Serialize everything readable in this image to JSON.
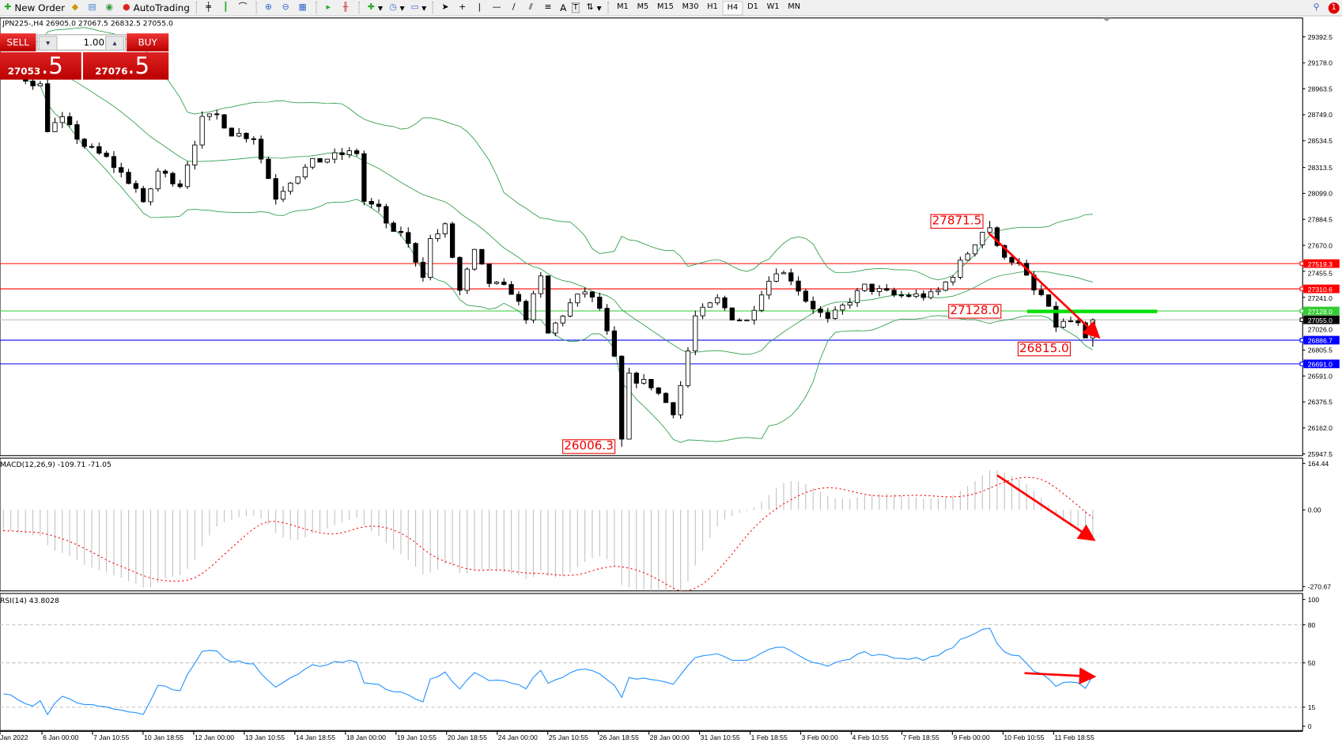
{
  "toolbar": {
    "new_order": "New Order",
    "auto_trading": "AutoTrading",
    "timeframes": [
      "M1",
      "M5",
      "M15",
      "M30",
      "H1",
      "H4",
      "D1",
      "W1",
      "MN"
    ],
    "active_timeframe": "H4",
    "notification_count": "1",
    "draw_tools": {
      "text": "A",
      "text_label": "T"
    }
  },
  "chart": {
    "title": "JPN225-,H4  26905.0 27067.5 26832.5 27055.0",
    "symbol": "JPN225-",
    "timeframe": "H4",
    "last_bar": {
      "open": 26905.0,
      "high": 27067.5,
      "low": 26832.5,
      "close": 27055.0
    },
    "price_ticks": [
      "29392.5",
      "29178.0",
      "28963.5",
      "28749.0",
      "28534.5",
      "28313.5",
      "28099.0",
      "27884.5",
      "27670.0",
      "27455.5",
      "27241.0",
      "27026.0",
      "26805.5",
      "26591.0",
      "26376.5",
      "26162.0",
      "25947.5"
    ],
    "price_range": [
      25947.5,
      29392.5
    ],
    "hlines": [
      {
        "price": 27519.3,
        "label": "27519.3",
        "color": "#ff0000"
      },
      {
        "price": 27310.6,
        "label": "27310.6",
        "color": "#ff0000"
      },
      {
        "price": 27128.0,
        "label": "27128.0",
        "color": "#32cd32"
      },
      {
        "price": 26886.7,
        "label": "26886.7",
        "color": "#0000ff"
      },
      {
        "price": 26691.0,
        "label": "26691.0",
        "color": "#0000ff"
      }
    ],
    "bid": {
      "price": 27055.0,
      "label": "27055.0",
      "color": "#000000"
    },
    "annotations": [
      "27871.5",
      "27128.0",
      "26815.0",
      "26006.3"
    ],
    "close_path_keypoints": [
      [
        0,
        29130
      ],
      [
        5,
        28990
      ],
      [
        6,
        28636
      ],
      [
        8,
        28706
      ],
      [
        11,
        28494
      ],
      [
        14,
        28388
      ],
      [
        18,
        28140
      ],
      [
        19,
        27999
      ],
      [
        21,
        28282
      ],
      [
        24,
        28176
      ],
      [
        27,
        28706
      ],
      [
        29,
        28742
      ],
      [
        31,
        28600
      ],
      [
        34,
        28565
      ],
      [
        35,
        28388
      ],
      [
        37,
        28070
      ],
      [
        39,
        28211
      ],
      [
        42,
        28353
      ],
      [
        46,
        28423
      ],
      [
        48,
        28438
      ],
      [
        49,
        28034
      ],
      [
        51,
        27964
      ],
      [
        53,
        27752
      ],
      [
        54,
        27787
      ],
      [
        57,
        27433
      ],
      [
        58,
        27716
      ],
      [
        60,
        27822
      ],
      [
        61,
        27575
      ],
      [
        62,
        27292
      ],
      [
        64,
        27610
      ],
      [
        66,
        27362
      ],
      [
        69,
        27292
      ],
      [
        71,
        27080
      ],
      [
        73,
        27398
      ],
      [
        74,
        26938
      ],
      [
        77,
        27186
      ],
      [
        79,
        27292
      ],
      [
        81,
        27150
      ],
      [
        83,
        26726
      ],
      [
        84,
        26054
      ],
      [
        85,
        26584
      ],
      [
        88,
        26514
      ],
      [
        91,
        26302
      ],
      [
        92,
        26514
      ],
      [
        94,
        27080
      ],
      [
        97,
        27221
      ],
      [
        99,
        27080
      ],
      [
        101,
        27044
      ],
      [
        103,
        27292
      ],
      [
        105,
        27469
      ],
      [
        107,
        27398
      ],
      [
        109,
        27221
      ],
      [
        112,
        27044
      ],
      [
        115,
        27221
      ],
      [
        117,
        27327
      ],
      [
        121,
        27256
      ],
      [
        126,
        27256
      ],
      [
        127,
        27292
      ],
      [
        129,
        27433
      ],
      [
        131,
        27610
      ],
      [
        133,
        27787
      ],
      [
        134,
        27822
      ],
      [
        135,
        27645
      ],
      [
        138,
        27504
      ],
      [
        140,
        27292
      ],
      [
        141,
        27256
      ],
      [
        143,
        27008
      ],
      [
        145,
        27044
      ],
      [
        147,
        26973
      ],
      [
        148,
        27055
      ]
    ],
    "swing_high": 27871.5,
    "swing_low": 26006.3,
    "colors": {
      "bull_body": "#ffffff",
      "bear_body": "#000000",
      "bands": "#2e9e4a",
      "trend_arrow": "#ff0000",
      "support_line": "#00e000"
    }
  },
  "one_click": {
    "sell_label": "SELL",
    "buy_label": "BUY",
    "lot": "1.00",
    "sell_price_main": "27053",
    "sell_price_frac": ".5",
    "buy_price_main": "27076",
    "buy_price_frac": ".5"
  },
  "macd": {
    "label": "MACD(12,26,9) -109.71 -71.05",
    "ticks": [
      "164.44",
      "0.00",
      "-270.67"
    ],
    "range": [
      -270.67,
      164.44
    ],
    "signal_color": "#ff0000",
    "hist_color": "#c0c0c0"
  },
  "rsi": {
    "label": "RSI(14) 43.8028",
    "ticks": [
      "100",
      "80",
      "50",
      "15",
      "0"
    ],
    "levels": [
      80,
      50,
      15
    ],
    "color": "#1e90ff"
  },
  "time_axis": [
    "Jan 2022",
    "6 Jan 00:00",
    "7 Jan 10:55",
    "10 Jan 18:55",
    "12 Jan 00:00",
    "13 Jan 10:55",
    "14 Jan 18:55",
    "18 Jan 00:00",
    "19 Jan 10:55",
    "20 Jan 18:55",
    "24 Jan 00:00",
    "25 Jan 10:55",
    "26 Jan 18:55",
    "28 Jan 00:00",
    "31 Jan 10:55",
    "1 Feb 18:55",
    "3 Feb 00:00",
    "4 Feb 10:55",
    "7 Feb 18:55",
    "9 Feb 00:00",
    "10 Feb 10:55",
    "11 Feb 18:55"
  ]
}
